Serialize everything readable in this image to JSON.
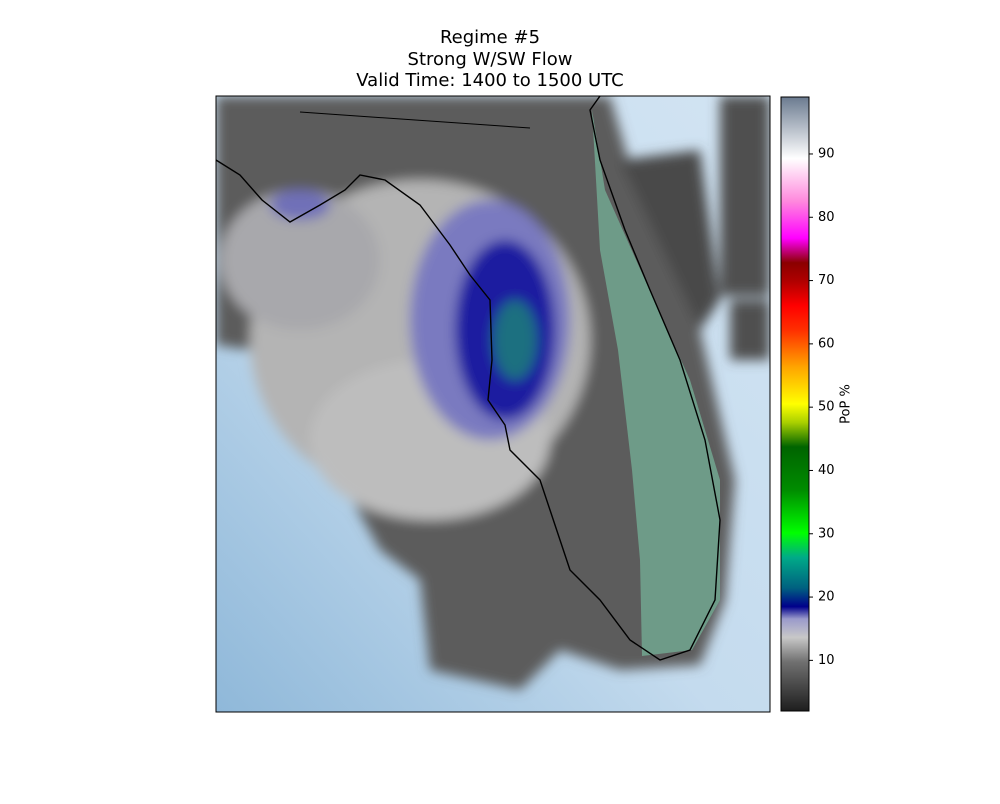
{
  "chart_data": {
    "type": "map",
    "title": [
      "Regime #5",
      "Strong W/SW Flow",
      "Valid Time: 1400 to 1500 UTC"
    ],
    "colorbar": {
      "label": "PoP %",
      "lim": [
        2,
        99
      ],
      "ticks": [
        10,
        20,
        30,
        40,
        50,
        60,
        70,
        80,
        90
      ]
    }
  }
}
